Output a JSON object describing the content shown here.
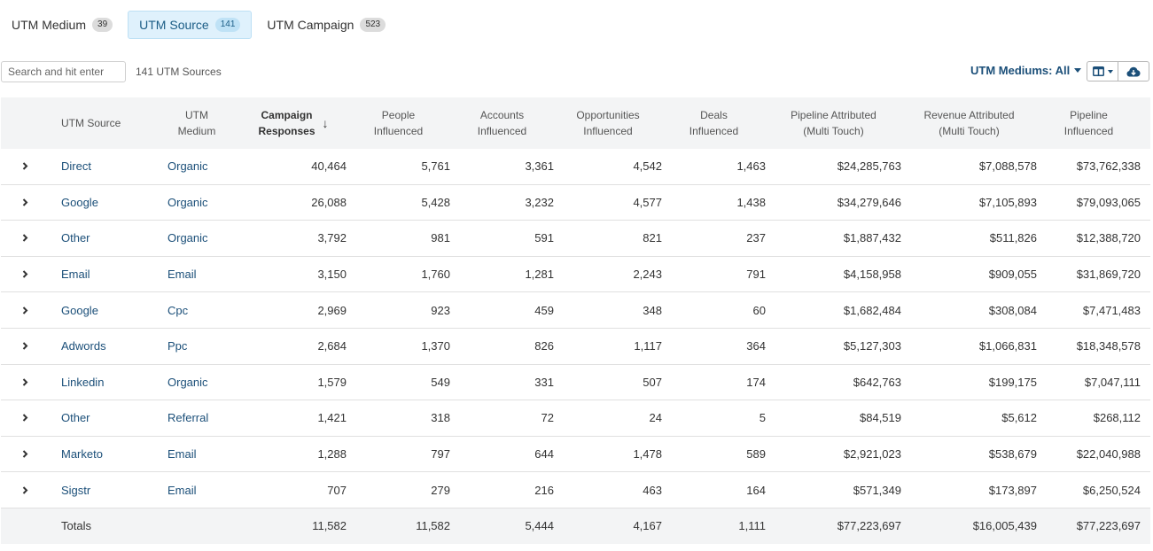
{
  "tabs": [
    {
      "label": "UTM Medium",
      "count": "39",
      "active": false
    },
    {
      "label": "UTM Source",
      "count": "141",
      "active": true
    },
    {
      "label": "UTM Campaign",
      "count": "523",
      "active": false
    }
  ],
  "toolbar": {
    "search_placeholder": "Search and hit enter",
    "record_count": "141 UTM Sources",
    "filter_label": "UTM Mediums: All",
    "columns_icon": "columns-icon",
    "download_icon": "cloud-download-icon"
  },
  "table": {
    "headers": {
      "source": "UTM Source",
      "medium_1": "UTM",
      "medium_2": "Medium",
      "responses_1": "Campaign",
      "responses_2": "Responses",
      "people_1": "People",
      "people_2": "Influenced",
      "accounts_1": "Accounts",
      "accounts_2": "Influenced",
      "opps_1": "Opportunities",
      "opps_2": "Influenced",
      "deals_1": "Deals",
      "deals_2": "Influenced",
      "pipeline_attr_1": "Pipeline Attributed",
      "pipeline_attr_2": "(Multi Touch)",
      "revenue_attr_1": "Revenue Attributed",
      "revenue_attr_2": "(Multi Touch)",
      "pipeline_inf_1": "Pipeline",
      "pipeline_inf_2": "Influenced"
    },
    "sort_icon": "arrow-down-icon",
    "expand_icon": "chevron-right-icon",
    "rows": [
      {
        "source": "Direct",
        "medium": "Organic",
        "responses": "40,464",
        "people": "5,761",
        "accounts": "3,361",
        "opps": "4,542",
        "deals": "1,463",
        "pipeline_attr": "$24,285,763",
        "revenue_attr": "$7,088,578",
        "pipeline_inf": "$73,762,338"
      },
      {
        "source": "Google",
        "medium": "Organic",
        "responses": "26,088",
        "people": "5,428",
        "accounts": "3,232",
        "opps": "4,577",
        "deals": "1,438",
        "pipeline_attr": "$34,279,646",
        "revenue_attr": "$7,105,893",
        "pipeline_inf": "$79,093,065"
      },
      {
        "source": "Other",
        "medium": "Organic",
        "responses": "3,792",
        "people": "981",
        "accounts": "591",
        "opps": "821",
        "deals": "237",
        "pipeline_attr": "$1,887,432",
        "revenue_attr": "$511,826",
        "pipeline_inf": "$12,388,720"
      },
      {
        "source": "Email",
        "medium": "Email",
        "responses": "3,150",
        "people": "1,760",
        "accounts": "1,281",
        "opps": "2,243",
        "deals": "791",
        "pipeline_attr": "$4,158,958",
        "revenue_attr": "$909,055",
        "pipeline_inf": "$31,869,720"
      },
      {
        "source": "Google",
        "medium": "Cpc",
        "responses": "2,969",
        "people": "923",
        "accounts": "459",
        "opps": "348",
        "deals": "60",
        "pipeline_attr": "$1,682,484",
        "revenue_attr": "$308,084",
        "pipeline_inf": "$7,471,483"
      },
      {
        "source": "Adwords",
        "medium": "Ppc",
        "responses": "2,684",
        "people": "1,370",
        "accounts": "826",
        "opps": "1,117",
        "deals": "364",
        "pipeline_attr": "$5,127,303",
        "revenue_attr": "$1,066,831",
        "pipeline_inf": "$18,348,578"
      },
      {
        "source": "Linkedin",
        "medium": "Organic",
        "responses": "1,579",
        "people": "549",
        "accounts": "331",
        "opps": "507",
        "deals": "174",
        "pipeline_attr": "$642,763",
        "revenue_attr": "$199,175",
        "pipeline_inf": "$7,047,111"
      },
      {
        "source": "Other",
        "medium": "Referral",
        "responses": "1,421",
        "people": "318",
        "accounts": "72",
        "opps": "24",
        "deals": "5",
        "pipeline_attr": "$84,519",
        "revenue_attr": "$5,612",
        "pipeline_inf": "$268,112"
      },
      {
        "source": "Marketo",
        "medium": "Email",
        "responses": "1,288",
        "people": "797",
        "accounts": "644",
        "opps": "1,478",
        "deals": "589",
        "pipeline_attr": "$2,921,023",
        "revenue_attr": "$538,679",
        "pipeline_inf": "$22,040,988"
      },
      {
        "source": "Sigstr",
        "medium": "Email",
        "responses": "707",
        "people": "279",
        "accounts": "216",
        "opps": "463",
        "deals": "164",
        "pipeline_attr": "$571,349",
        "revenue_attr": "$173,897",
        "pipeline_inf": "$6,250,524"
      }
    ],
    "totals": {
      "label": "Totals",
      "responses": "11,582",
      "people": "11,582",
      "accounts": "5,444",
      "opps": "4,167",
      "deals": "1,111",
      "pipeline_attr": "$77,223,697",
      "revenue_attr": "$16,005,439",
      "pipeline_inf": "$77,223,697"
    }
  }
}
